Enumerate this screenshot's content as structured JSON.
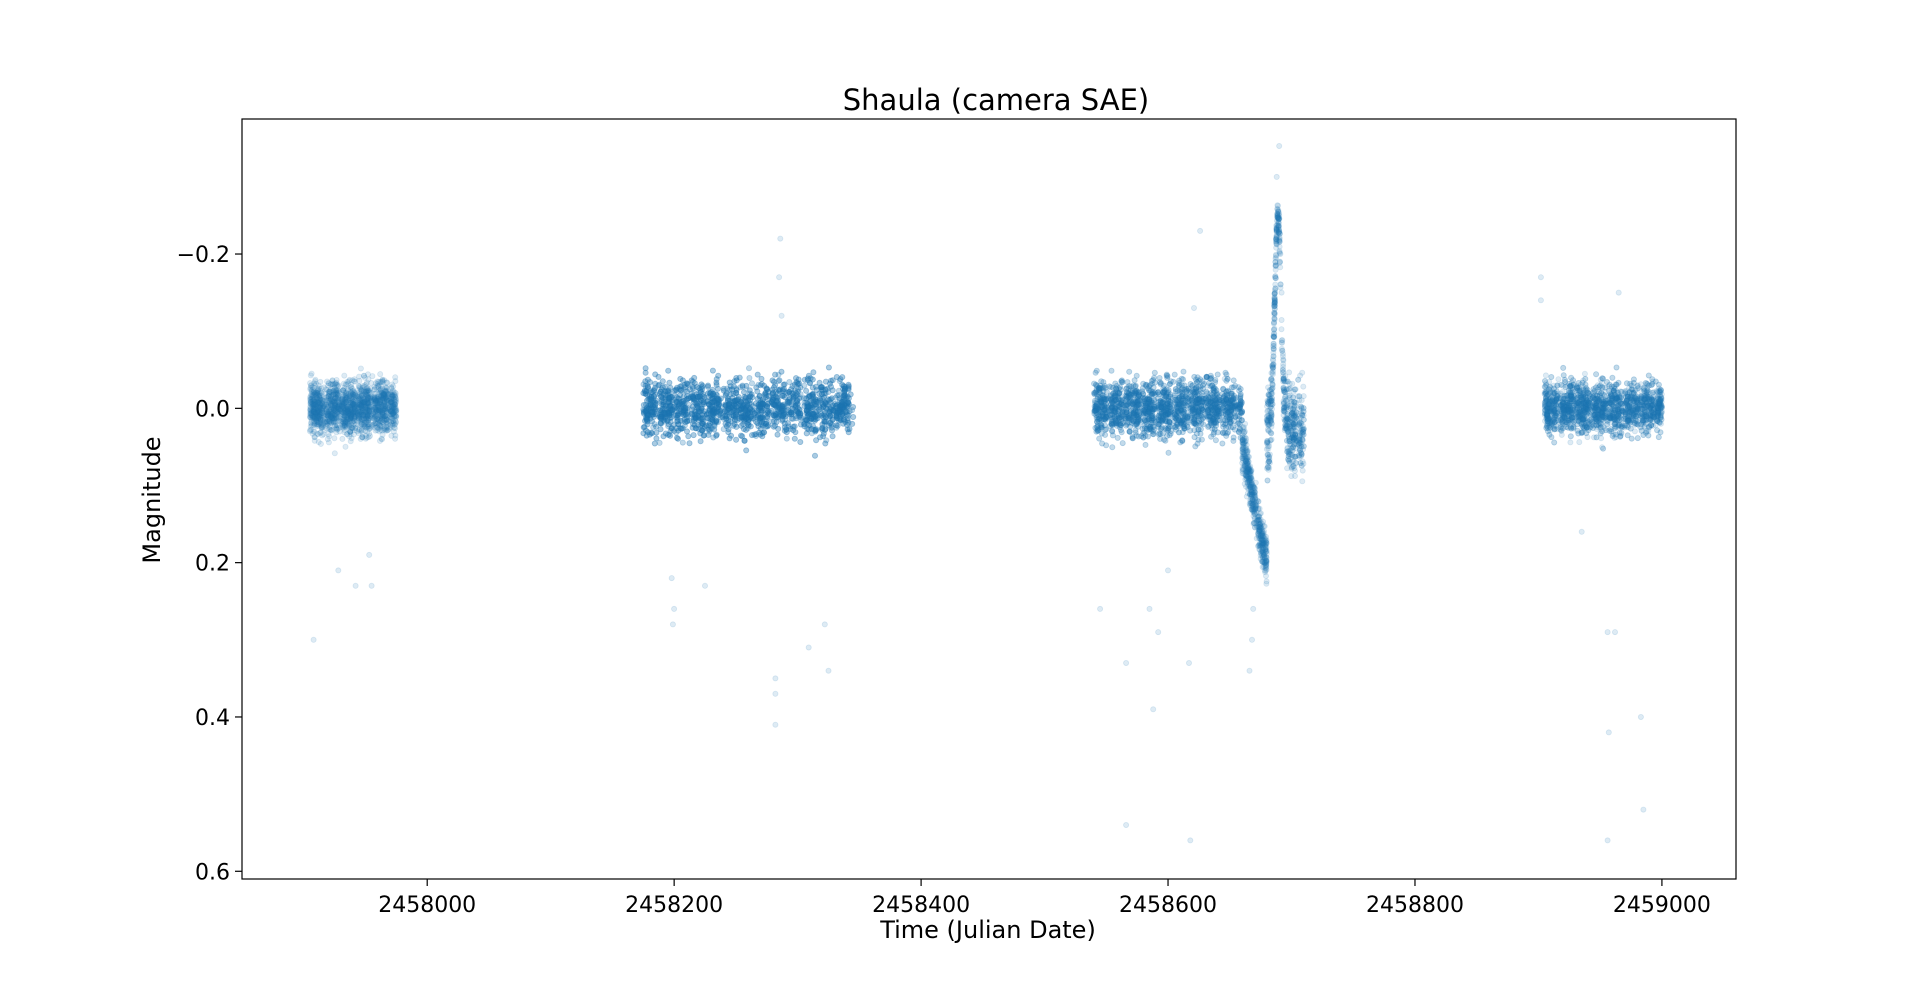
{
  "chart_data": {
    "type": "scatter",
    "title": "Shaula (camera SAE)",
    "xlabel": "Time (Julian Date)",
    "ylabel": "Magnitude",
    "xlim": [
      2457850,
      2459060
    ],
    "ylim": [
      0.61,
      -0.375
    ],
    "y_inverted": true,
    "grid": false,
    "legend": "none",
    "x_ticks": [
      2458000,
      2458200,
      2458400,
      2458600,
      2458800,
      2459000
    ],
    "x_tick_labels": [
      "2458000",
      "2458200",
      "2458400",
      "2458600",
      "2458800",
      "2459000"
    ],
    "y_ticks": [
      -0.2,
      0.0,
      0.2,
      0.4,
      0.6
    ],
    "y_tick_labels": [
      "−0.2",
      "0.0",
      "0.2",
      "0.4",
      "0.6"
    ],
    "marker_color": "#1f77b4",
    "marker_alpha": 0.15,
    "series": [
      {
        "segments": [
          {
            "x": [
              2457905,
              2457975
            ],
            "y_center": 0.0,
            "y_spread": 0.06
          },
          {
            "x": [
              2458175,
              2458345
            ],
            "y_center": 0.0,
            "y_spread": 0.065
          },
          {
            "x": [
              2458540,
              2458660
            ],
            "y_center": 0.0,
            "y_spread": 0.065
          },
          {
            "x": [
              2458660,
              2458680
            ],
            "y_center": 0.13,
            "y_spread": 0.09
          },
          {
            "x": [
              2458680,
              2458710
            ],
            "y_center": -0.08,
            "y_spread": 0.09
          },
          {
            "x": [
              2458905,
              2459000
            ],
            "y_center": 0.0,
            "y_spread": 0.06
          }
        ],
        "notable_points": [
          {
            "x": 2458690,
            "y": -0.34
          },
          {
            "x": 2458688,
            "y": -0.3
          },
          {
            "x": 2458690,
            "y": -0.25
          },
          {
            "x": 2458691,
            "y": -0.2
          },
          {
            "x": 2458692,
            "y": -0.15
          },
          {
            "x": 2458669,
            "y": 0.26
          },
          {
            "x": 2458668,
            "y": 0.3
          },
          {
            "x": 2458666,
            "y": 0.34
          },
          {
            "x": 2458286,
            "y": -0.22
          },
          {
            "x": 2458285,
            "y": -0.17
          },
          {
            "x": 2458287,
            "y": -0.12
          },
          {
            "x": 2458626,
            "y": -0.23
          },
          {
            "x": 2458902,
            "y": -0.17
          },
          {
            "x": 2458902,
            "y": -0.14
          },
          {
            "x": 2457908,
            "y": 0.3
          },
          {
            "x": 2457928,
            "y": 0.21
          },
          {
            "x": 2457942,
            "y": 0.23
          },
          {
            "x": 2457953,
            "y": 0.19
          },
          {
            "x": 2457955,
            "y": 0.23
          },
          {
            "x": 2458199,
            "y": 0.28
          },
          {
            "x": 2458200,
            "y": 0.26
          },
          {
            "x": 2458198,
            "y": 0.22
          },
          {
            "x": 2458282,
            "y": 0.35
          },
          {
            "x": 2458282,
            "y": 0.37
          },
          {
            "x": 2458282,
            "y": 0.41
          },
          {
            "x": 2458309,
            "y": 0.31
          },
          {
            "x": 2458322,
            "y": 0.28
          },
          {
            "x": 2458325,
            "y": 0.34
          },
          {
            "x": 2458225,
            "y": 0.23
          },
          {
            "x": 2458545,
            "y": 0.26
          },
          {
            "x": 2458566,
            "y": 0.33
          },
          {
            "x": 2458566,
            "y": 0.54
          },
          {
            "x": 2458585,
            "y": 0.26
          },
          {
            "x": 2458588,
            "y": 0.39
          },
          {
            "x": 2458592,
            "y": 0.29
          },
          {
            "x": 2458617,
            "y": 0.33
          },
          {
            "x": 2458618,
            "y": 0.56
          },
          {
            "x": 2458600,
            "y": 0.21
          },
          {
            "x": 2458935,
            "y": 0.16
          },
          {
            "x": 2458956,
            "y": 0.29
          },
          {
            "x": 2458962,
            "y": 0.29
          },
          {
            "x": 2458957,
            "y": 0.42
          },
          {
            "x": 2458956,
            "y": 0.56
          },
          {
            "x": 2458983,
            "y": 0.4
          },
          {
            "x": 2458985,
            "y": 0.52
          },
          {
            "x": 2458965,
            "y": -0.15
          },
          {
            "x": 2458621,
            "y": -0.13
          }
        ]
      }
    ]
  }
}
